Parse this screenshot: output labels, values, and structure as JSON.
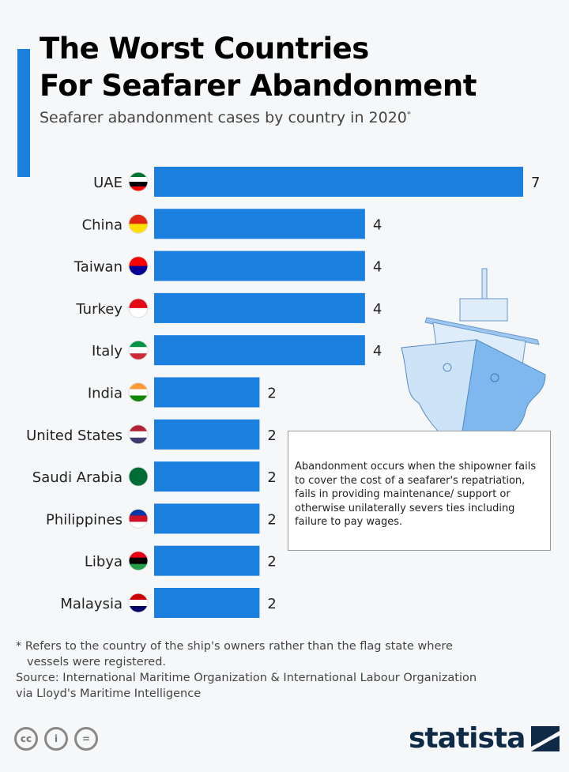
{
  "header": {
    "title_line1": "The Worst Countries",
    "title_line2": "For Seafarer Abandonment",
    "subtitle": "Seafarer abandonment cases by country in 2020",
    "subtitle_mark": "*"
  },
  "chart_data": {
    "type": "bar",
    "orientation": "horizontal",
    "title": "The Worst Countries For Seafarer Abandonment",
    "subtitle": "Seafarer abandonment cases by country in 2020*",
    "xlabel": "",
    "ylabel": "",
    "categories": [
      "UAE",
      "China",
      "Taiwan",
      "Turkey",
      "Italy",
      "India",
      "United States",
      "Saudi Arabia",
      "Philippines",
      "Libya",
      "Malaysia"
    ],
    "values": [
      7,
      4,
      4,
      4,
      4,
      2,
      2,
      2,
      2,
      2,
      2
    ],
    "xlim": [
      0,
      7
    ],
    "grid": false,
    "bar_color": "#1b7fe0"
  },
  "flags": {
    "UAE": [
      "#00732f",
      "#ffffff",
      "#000000",
      "#ff0000"
    ],
    "China": [
      "#de2910",
      "#ffde00"
    ],
    "Taiwan": [
      "#fe0000",
      "#000095"
    ],
    "Turkey": [
      "#e30a17",
      "#ffffff"
    ],
    "Italy": [
      "#009246",
      "#ffffff",
      "#ce2b37"
    ],
    "India": [
      "#ff9933",
      "#ffffff",
      "#138808"
    ],
    "United States": [
      "#b22234",
      "#ffffff",
      "#3c3b6e"
    ],
    "Saudi Arabia": [
      "#006c35"
    ],
    "Philippines": [
      "#0038a8",
      "#ce1126",
      "#ffffff"
    ],
    "Libya": [
      "#e70013",
      "#000000",
      "#239e46"
    ],
    "Malaysia": [
      "#cc0001",
      "#ffffff",
      "#010066"
    ]
  },
  "note": "Abandonment occurs when the shipowner fails to cover the cost of a seafarer's repatriation, fails in providing maintenance/ support or otherwise unilaterally severs ties including failure to pay wages.",
  "footer": {
    "footnote_line1": "* Refers to the country of the ship's owners rather than the flag state where",
    "footnote_line2": "vessels were registered.",
    "source_line1": "Source: International Maritime Organization & International Labour Organization",
    "source_line2": "via Lloyd's Maritime Intelligence",
    "cc_labels": [
      "cc",
      "i",
      "="
    ],
    "brand": "statista"
  }
}
